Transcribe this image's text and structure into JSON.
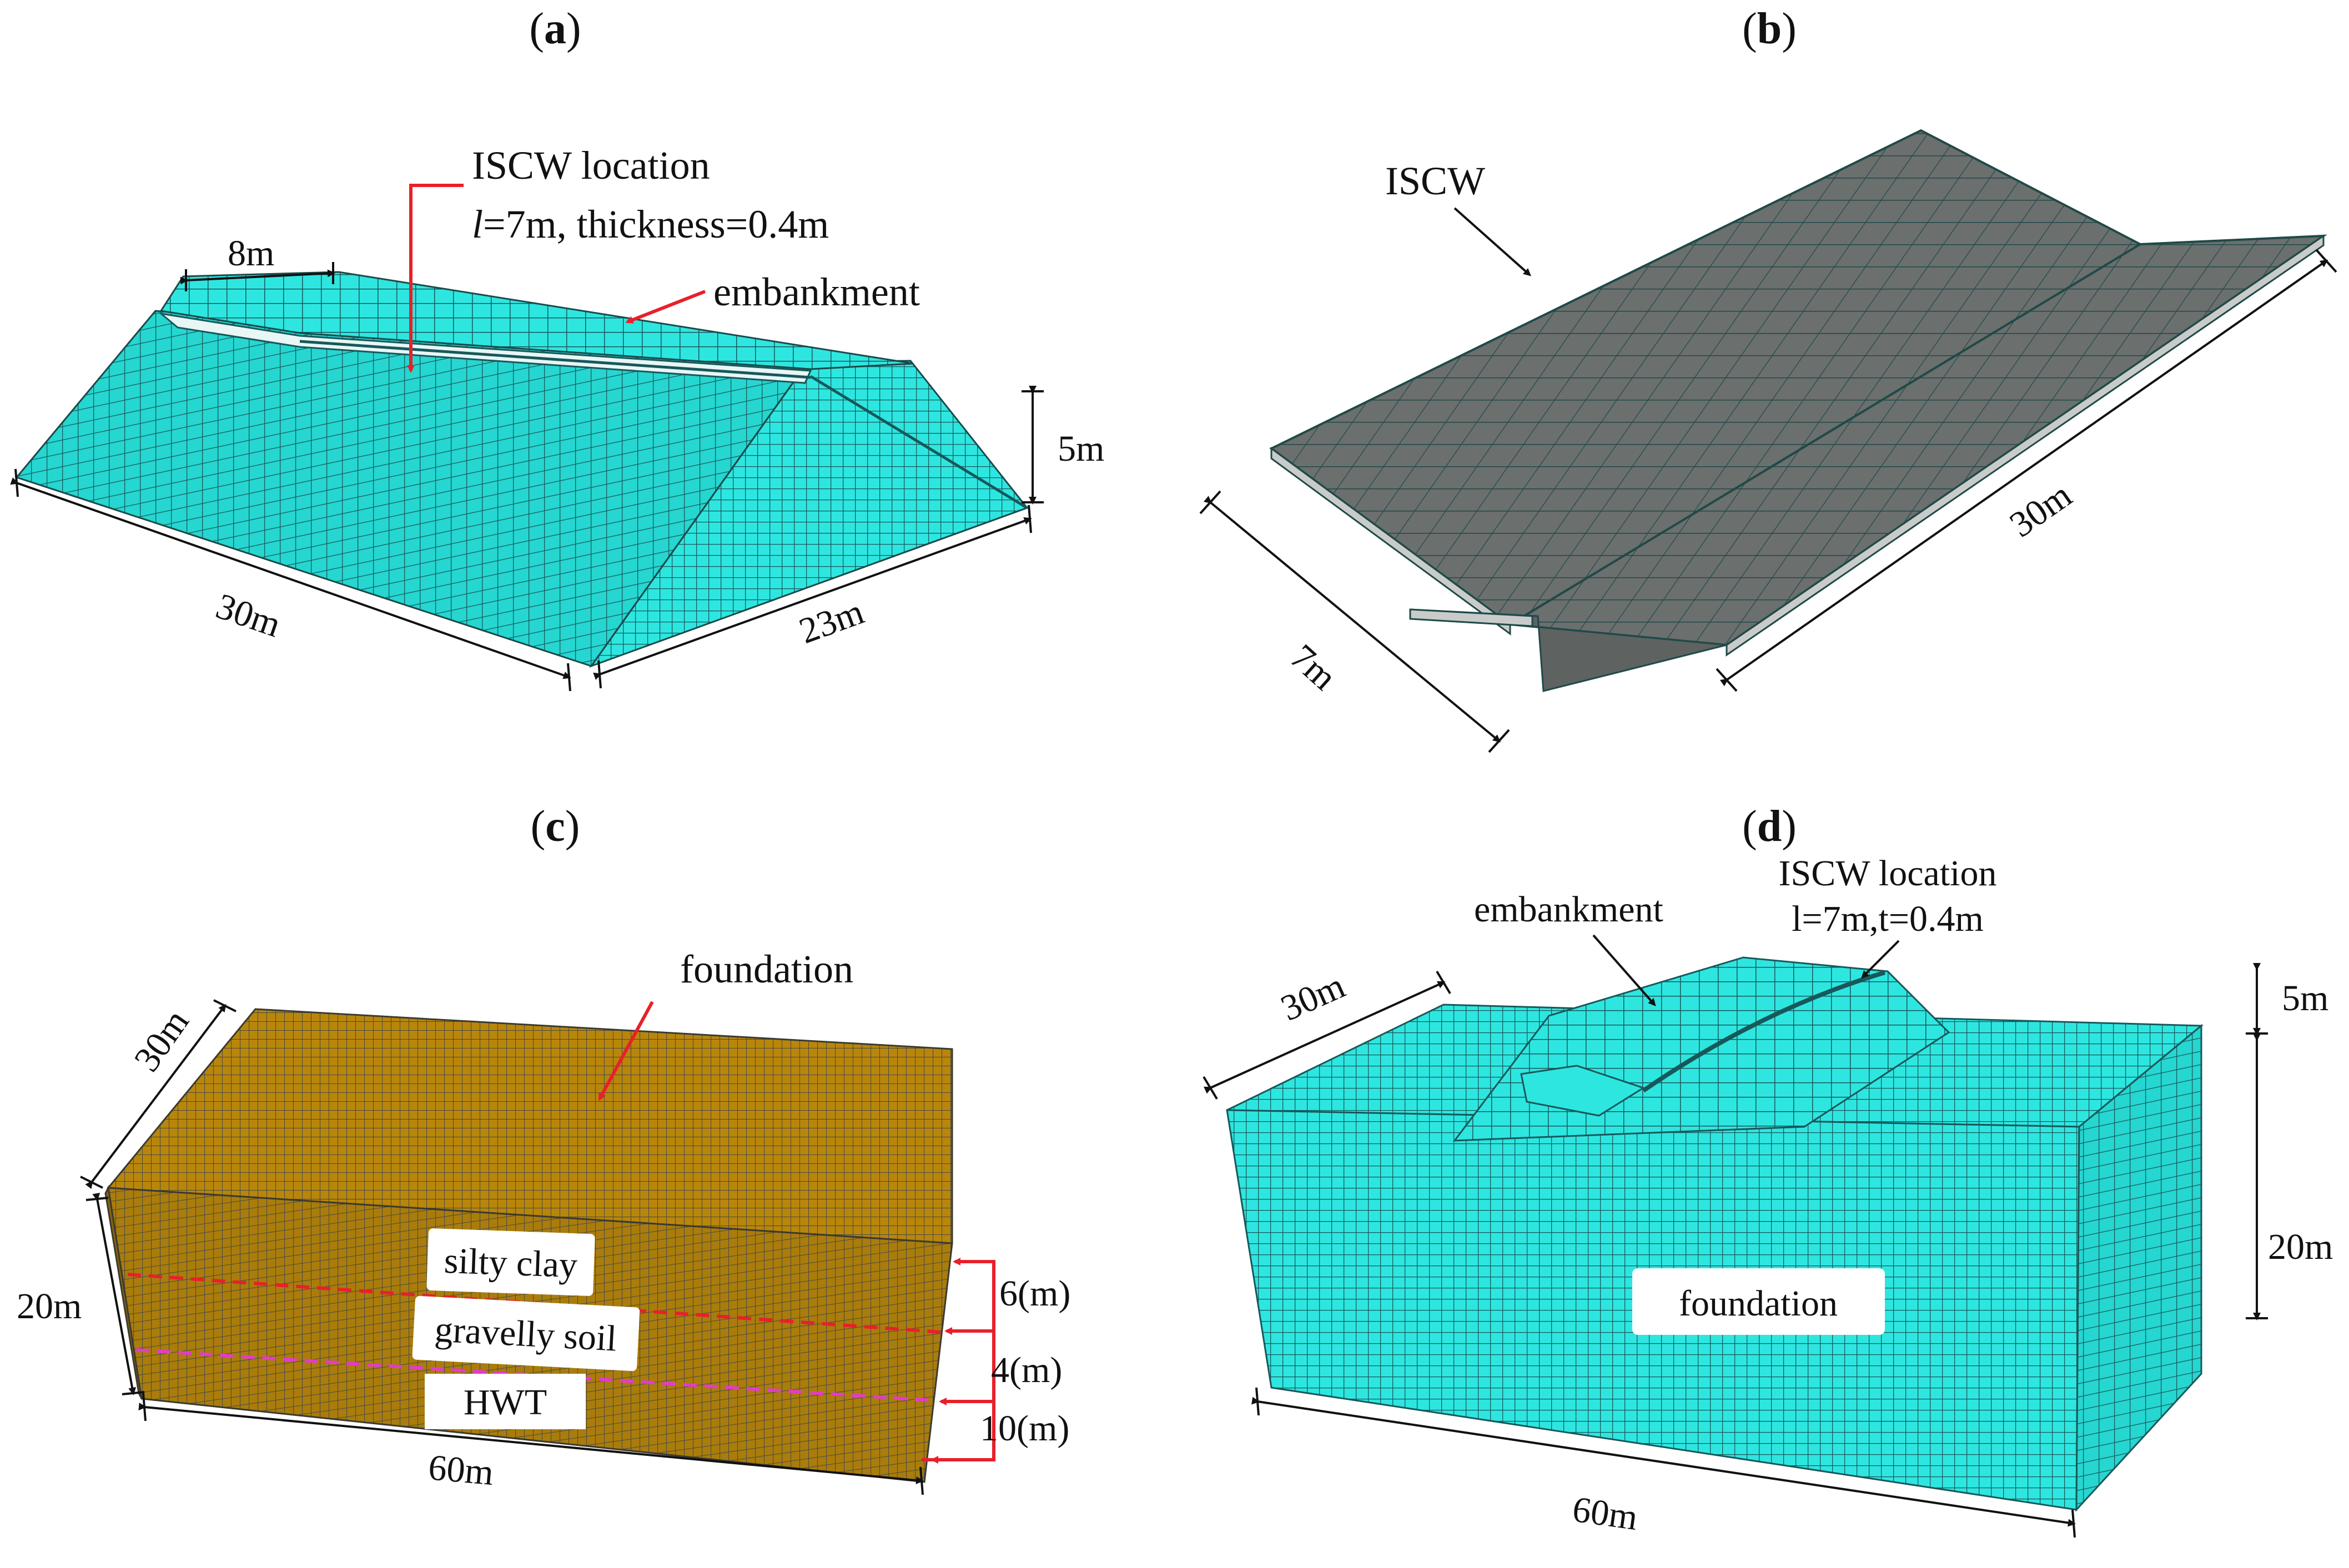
{
  "panels": {
    "a": {
      "letter": "a",
      "callout_title": "ISCW  location",
      "callout_l_var": "l",
      "callout_l_rest": "=7m, thickness=0.4m",
      "embankment_label": "embankment",
      "dim_top": "8m",
      "dim_height": "5m",
      "dim_length": "30m",
      "dim_width": "23m"
    },
    "b": {
      "letter": "b",
      "wall_label": "ISCW",
      "dim_depth": "7m",
      "dim_length": "30m"
    },
    "c": {
      "letter": "c",
      "foundation_label": "foundation",
      "layer1": "silty clay",
      "layer2": "gravelly soil",
      "layer3": "HWT",
      "dim_width": "30m",
      "dim_height": "20m",
      "dim_length": "60m",
      "thick1": "6(m)",
      "thick2": "4(m)",
      "thick3": "10(m)"
    },
    "d": {
      "letter": "d",
      "embankment_label": "embankment",
      "iscw_line1": "ISCW location",
      "iscw_line2": "l=7m,t=0.4m",
      "foundation_label": "foundation",
      "dim_width": "30m",
      "dim_emb_height": "5m",
      "dim_found_height": "20m",
      "dim_length": "60m"
    }
  },
  "colors": {
    "mesh_cyan": "#2ee6e0",
    "mesh_grey": "#6b6f6e",
    "mesh_olive": "#b8860b",
    "annotation_red": "#e8202a",
    "layer_pink": "#e23cc8"
  }
}
